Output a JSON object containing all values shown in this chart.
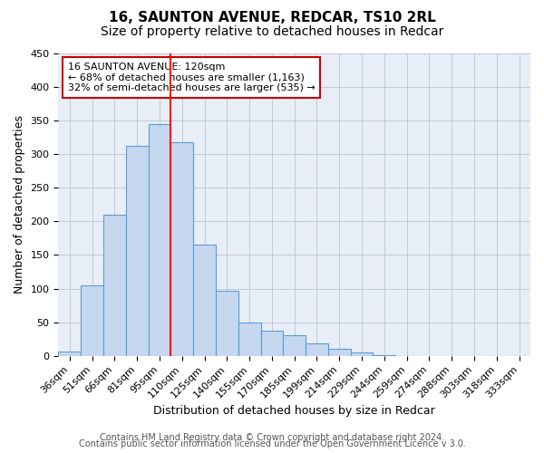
{
  "title": "16, SAUNTON AVENUE, REDCAR, TS10 2RL",
  "subtitle": "Size of property relative to detached houses in Redcar",
  "xlabel": "Distribution of detached houses by size in Redcar",
  "ylabel": "Number of detached properties",
  "footer_line1": "Contains HM Land Registry data © Crown copyright and database right 2024.",
  "footer_line2": "Contains public sector information licensed under the Open Government Licence v 3.0.",
  "bin_labels": [
    "36sqm",
    "51sqm",
    "66sqm",
    "81sqm",
    "95sqm",
    "110sqm",
    "125sqm",
    "140sqm",
    "155sqm",
    "170sqm",
    "185sqm",
    "199sqm",
    "214sqm",
    "229sqm",
    "244sqm",
    "259sqm",
    "274sqm",
    "288sqm",
    "303sqm",
    "318sqm",
    "333sqm"
  ],
  "bar_values": [
    7,
    105,
    210,
    313,
    345,
    318,
    165,
    97,
    50,
    37,
    30,
    18,
    10,
    5,
    1,
    0,
    0,
    0,
    0,
    0,
    0
  ],
  "bar_color": "#c5d8f0",
  "bar_edge_color": "#5b9bd5",
  "red_line_bin_index": 5,
  "annotation_title": "16 SAUNTON AVENUE: 120sqm",
  "annotation_line1": "← 68% of detached houses are smaller (1,163)",
  "annotation_line2": "32% of semi-detached houses are larger (535) →",
  "annotation_box_color": "#ffffff",
  "annotation_box_edge_color": "#cc0000",
  "ylim": [
    0,
    450
  ],
  "yticks": [
    0,
    50,
    100,
    150,
    200,
    250,
    300,
    350,
    400,
    450
  ],
  "bg_axes": "#e8eef7",
  "background_color": "#ffffff",
  "grid_color": "#c0c8d8",
  "title_fontsize": 11,
  "subtitle_fontsize": 10,
  "axis_label_fontsize": 9,
  "tick_fontsize": 8,
  "footer_fontsize": 7
}
